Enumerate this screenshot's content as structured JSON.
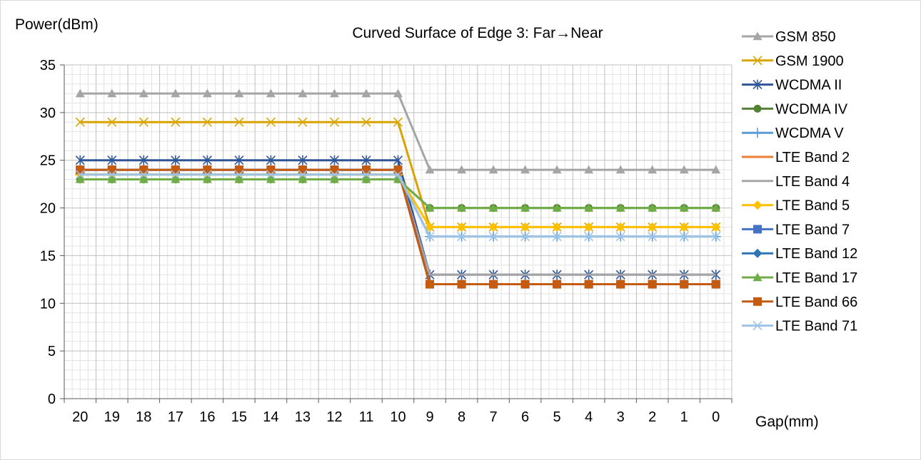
{
  "chart_data": {
    "type": "line",
    "title": "Curved Surface of Edge 3: Far→Near",
    "xlabel": "Gap(mm)",
    "ylabel": "Power(dBm)",
    "categories": [
      "20",
      "19",
      "18",
      "17",
      "16",
      "15",
      "14",
      "13",
      "12",
      "11",
      "10",
      "9",
      "8",
      "7",
      "6",
      "5",
      "4",
      "3",
      "2",
      "1",
      "0"
    ],
    "ylim": [
      0,
      35
    ],
    "yticks": [
      0,
      5,
      10,
      15,
      20,
      25,
      30,
      35
    ],
    "grid": true,
    "legend_position": "right",
    "series": [
      {
        "name": "GSM 850",
        "color": "#a5a5a5",
        "marker": "triangle",
        "values": [
          32,
          32,
          32,
          32,
          32,
          32,
          32,
          32,
          32,
          32,
          32,
          24,
          24,
          24,
          24,
          24,
          24,
          24,
          24,
          24,
          24
        ]
      },
      {
        "name": "GSM 1900",
        "color": "#d9a400",
        "marker": "x",
        "values": [
          29,
          29,
          29,
          29,
          29,
          29,
          29,
          29,
          29,
          29,
          29,
          18,
          18,
          18,
          18,
          18,
          18,
          18,
          18,
          18,
          18
        ]
      },
      {
        "name": "WCDMA II",
        "color": "#2f5597",
        "marker": "star",
        "values": [
          25,
          25,
          25,
          25,
          25,
          25,
          25,
          25,
          25,
          25,
          25,
          13,
          13,
          13,
          13,
          13,
          13,
          13,
          13,
          13,
          13
        ]
      },
      {
        "name": "WCDMA IV",
        "color": "#548235",
        "marker": "circle",
        "values": [
          23,
          23,
          23,
          23,
          23,
          23,
          23,
          23,
          23,
          23,
          23,
          20,
          20,
          20,
          20,
          20,
          20,
          20,
          20,
          20,
          20
        ]
      },
      {
        "name": "WCDMA V",
        "color": "#5b9bd5",
        "marker": "plus",
        "values": [
          23.5,
          23.5,
          23.5,
          23.5,
          23.5,
          23.5,
          23.5,
          23.5,
          23.5,
          23.5,
          23.5,
          17,
          17,
          17,
          17,
          17,
          17,
          17,
          17,
          17,
          17
        ]
      },
      {
        "name": "LTE Band 2",
        "color": "#ed7d31",
        "marker": "none",
        "values": [
          24,
          24,
          24,
          24,
          24,
          24,
          24,
          24,
          24,
          24,
          24,
          12,
          12,
          12,
          12,
          12,
          12,
          12,
          12,
          12,
          12
        ]
      },
      {
        "name": "LTE Band 4",
        "color": "#a5a5a5",
        "marker": "none",
        "values": [
          24,
          24,
          24,
          24,
          24,
          24,
          24,
          24,
          24,
          24,
          24,
          13,
          13,
          13,
          13,
          13,
          13,
          13,
          13,
          13,
          13
        ]
      },
      {
        "name": "LTE Band 5",
        "color": "#ffc000",
        "marker": "diamond",
        "values": [
          23.5,
          23.5,
          23.5,
          23.5,
          23.5,
          23.5,
          23.5,
          23.5,
          23.5,
          23.5,
          23.5,
          18,
          18,
          18,
          18,
          18,
          18,
          18,
          18,
          18,
          18
        ]
      },
      {
        "name": "LTE Band 7",
        "color": "#4472c4",
        "marker": "square",
        "values": [
          24,
          24,
          24,
          24,
          24,
          24,
          24,
          24,
          24,
          24,
          24,
          12,
          12,
          12,
          12,
          12,
          12,
          12,
          12,
          12,
          12
        ]
      },
      {
        "name": "LTE Band 12",
        "color": "#2e75b6",
        "marker": "diamond",
        "values": [
          24,
          24,
          24,
          24,
          24,
          24,
          24,
          24,
          24,
          24,
          24,
          12,
          12,
          12,
          12,
          12,
          12,
          12,
          12,
          12,
          12
        ]
      },
      {
        "name": "LTE Band 17",
        "color": "#70ad47",
        "marker": "triangle",
        "values": [
          23,
          23,
          23,
          23,
          23,
          23,
          23,
          23,
          23,
          23,
          23,
          20,
          20,
          20,
          20,
          20,
          20,
          20,
          20,
          20,
          20
        ]
      },
      {
        "name": "LTE Band 66",
        "color": "#c55a11",
        "marker": "square",
        "values": [
          24,
          24,
          24,
          24,
          24,
          24,
          24,
          24,
          24,
          24,
          24,
          12,
          12,
          12,
          12,
          12,
          12,
          12,
          12,
          12,
          12
        ]
      },
      {
        "name": "LTE Band 71",
        "color": "#9dc3e6",
        "marker": "x",
        "values": [
          23.5,
          23.5,
          23.5,
          23.5,
          23.5,
          23.5,
          23.5,
          23.5,
          23.5,
          23.5,
          23.5,
          17,
          17,
          17,
          17,
          17,
          17,
          17,
          17,
          17,
          17
        ]
      }
    ]
  }
}
